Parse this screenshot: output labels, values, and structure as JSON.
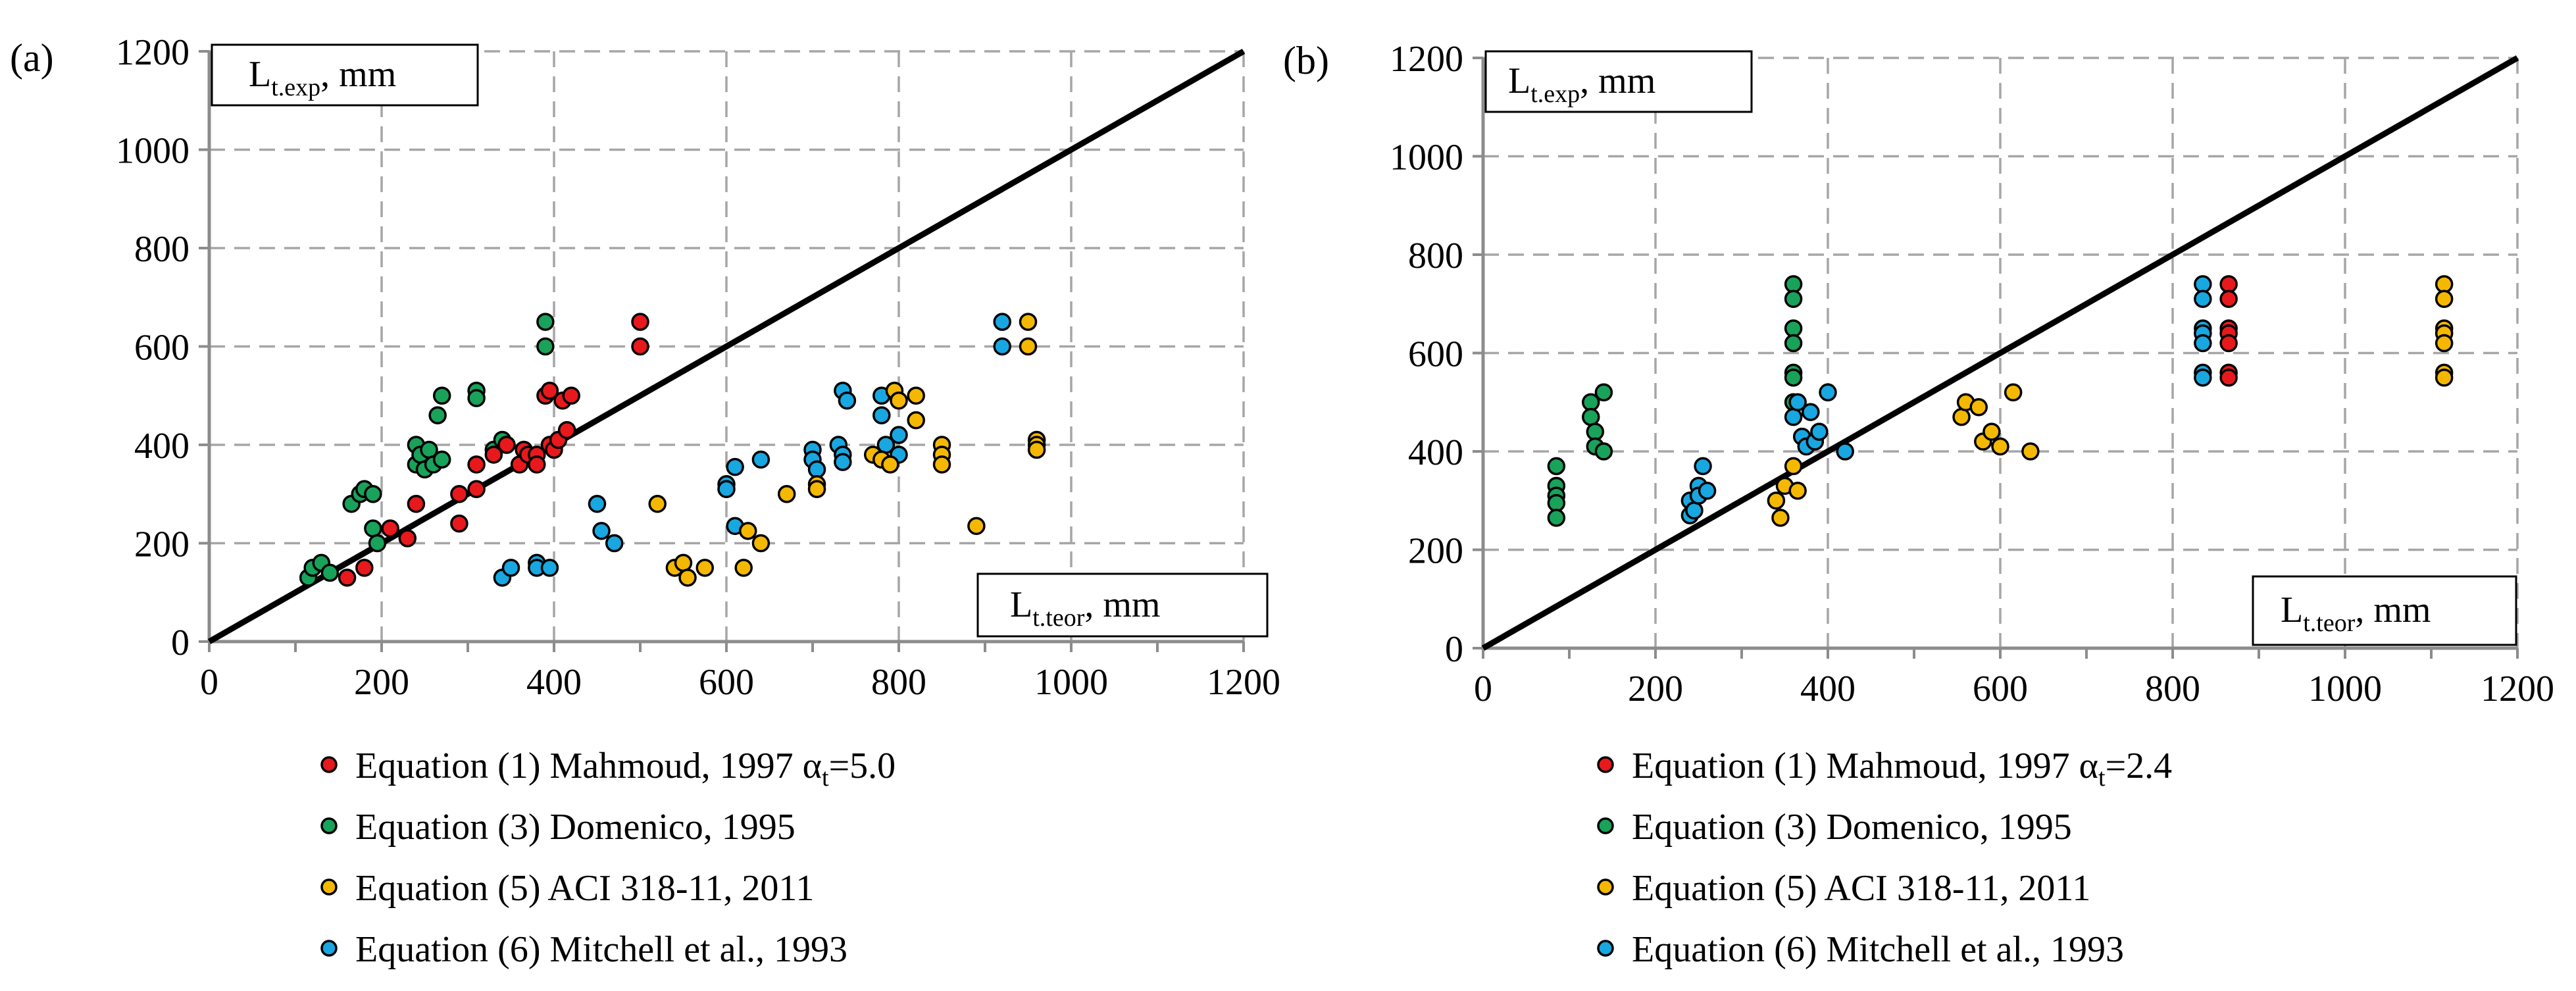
{
  "figure": {
    "colors": {
      "red": "#e8191c",
      "green": "#19a25a",
      "yellow": "#f5b800",
      "blue": "#18a7e0",
      "grid": "#a6a6a6",
      "axis": "#8c8c8c",
      "line": "#000000"
    }
  },
  "chart_data": [
    {
      "type": "scatter",
      "panel_label": "(a)",
      "xlabel_main": "L",
      "xlabel_sub": "t.teor",
      "xlabel_unit": ", mm",
      "ylabel_main": "L",
      "ylabel_sub": "t.exp",
      "ylabel_unit": ", mm",
      "xlim": [
        0,
        1200
      ],
      "ylim": [
        0,
        1200
      ],
      "xticks": [
        "0",
        "200",
        "400",
        "600",
        "800",
        "1000",
        "1200"
      ],
      "yticks": [
        "0",
        "200",
        "400",
        "600",
        "800",
        "1000",
        "1200"
      ],
      "grid": true,
      "reference_line": [
        [
          0,
          0
        ],
        [
          1200,
          1200
        ]
      ],
      "legend": [
        {
          "text": "Equation (1) Mahmoud, 1997 α",
          "sub": "t",
          "suffix": "=5.0",
          "color_key": "red"
        },
        {
          "text": "Equation (3) Domenico, 1995",
          "sub": "",
          "suffix": "",
          "color_key": "green"
        },
        {
          "text": "Equation (5) ACI 318-11, 2011",
          "sub": "",
          "suffix": "",
          "color_key": "yellow"
        },
        {
          "text": "Equation (6) Mitchell et al., 1993",
          "sub": "",
          "suffix": "",
          "color_key": "blue"
        }
      ],
      "series": [
        {
          "name": "Equation (6) Mitchell et al., 1993",
          "color_key": "blue",
          "points": [
            [
              340,
              130
            ],
            [
              350,
              150
            ],
            [
              380,
              160
            ],
            [
              380,
              150
            ],
            [
              395,
              150
            ],
            [
              450,
              280
            ],
            [
              455,
              225
            ],
            [
              470,
              200
            ],
            [
              600,
              320
            ],
            [
              600,
              310
            ],
            [
              610,
              355
            ],
            [
              610,
              235
            ],
            [
              640,
              370
            ],
            [
              700,
              390
            ],
            [
              700,
              370
            ],
            [
              705,
              350
            ],
            [
              730,
              400
            ],
            [
              735,
              380
            ],
            [
              735,
              365
            ],
            [
              735,
              510
            ],
            [
              740,
              490
            ],
            [
              780,
              500
            ],
            [
              780,
              460
            ],
            [
              785,
              400
            ],
            [
              800,
              420
            ],
            [
              800,
              380
            ],
            [
              920,
              650
            ],
            [
              920,
              600
            ]
          ]
        },
        {
          "name": "Equation (5) ACI 318-11, 2011",
          "color_key": "yellow",
          "points": [
            [
              520,
              280
            ],
            [
              540,
              150
            ],
            [
              550,
              160
            ],
            [
              555,
              130
            ],
            [
              575,
              150
            ],
            [
              620,
              150
            ],
            [
              625,
              225
            ],
            [
              640,
              200
            ],
            [
              670,
              300
            ],
            [
              705,
              320
            ],
            [
              705,
              310
            ],
            [
              770,
              380
            ],
            [
              780,
              370
            ],
            [
              790,
              360
            ],
            [
              795,
              510
            ],
            [
              800,
              490
            ],
            [
              820,
              500
            ],
            [
              820,
              450
            ],
            [
              850,
              400
            ],
            [
              850,
              380
            ],
            [
              850,
              360
            ],
            [
              890,
              235
            ],
            [
              950,
              650
            ],
            [
              950,
              600
            ],
            [
              960,
              410
            ],
            [
              960,
              400
            ],
            [
              960,
              390
            ]
          ]
        },
        {
          "name": "Equation (3) Domenico, 1995",
          "color_key": "green",
          "points": [
            [
              115,
              130
            ],
            [
              120,
              150
            ],
            [
              130,
              160
            ],
            [
              140,
              140
            ],
            [
              165,
              280
            ],
            [
              175,
              300
            ],
            [
              180,
              310
            ],
            [
              190,
              300
            ],
            [
              190,
              230
            ],
            [
              195,
              200
            ],
            [
              240,
              400
            ],
            [
              240,
              360
            ],
            [
              245,
              380
            ],
            [
              250,
              350
            ],
            [
              255,
              390
            ],
            [
              260,
              360
            ],
            [
              265,
              460
            ],
            [
              270,
              500
            ],
            [
              270,
              370
            ],
            [
              310,
              510
            ],
            [
              310,
              495
            ],
            [
              330,
              390
            ],
            [
              340,
              410
            ],
            [
              345,
              400
            ],
            [
              390,
              650
            ],
            [
              390,
              600
            ]
          ]
        },
        {
          "name": "Equation (1) Mahmoud, 1997 αt=5.0",
          "color_key": "red",
          "points": [
            [
              160,
              130
            ],
            [
              180,
              150
            ],
            [
              210,
              230
            ],
            [
              230,
              210
            ],
            [
              240,
              280
            ],
            [
              290,
              300
            ],
            [
              290,
              240
            ],
            [
              310,
              360
            ],
            [
              310,
              310
            ],
            [
              330,
              380
            ],
            [
              345,
              400
            ],
            [
              360,
              360
            ],
            [
              365,
              390
            ],
            [
              370,
              380
            ],
            [
              380,
              380
            ],
            [
              380,
              360
            ],
            [
              390,
              500
            ],
            [
              395,
              510
            ],
            [
              395,
              400
            ],
            [
              400,
              390
            ],
            [
              405,
              410
            ],
            [
              410,
              490
            ],
            [
              415,
              430
            ],
            [
              420,
              500
            ],
            [
              500,
              650
            ],
            [
              500,
              600
            ]
          ]
        }
      ]
    },
    {
      "type": "scatter",
      "panel_label": "(b)",
      "xlabel_main": "L",
      "xlabel_sub": "t.teor",
      "xlabel_unit": ", mm",
      "ylabel_main": "L",
      "ylabel_sub": "t.exp",
      "ylabel_unit": ", mm",
      "xlim": [
        0,
        1200
      ],
      "ylim": [
        0,
        1200
      ],
      "xticks": [
        "0",
        "200",
        "400",
        "600",
        "800",
        "1000",
        "1200"
      ],
      "yticks": [
        "0",
        "200",
        "400",
        "600",
        "800",
        "1000",
        "1200"
      ],
      "grid": true,
      "reference_line": [
        [
          0,
          0
        ],
        [
          1200,
          1200
        ]
      ],
      "legend": [
        {
          "text": "Equation (1) Mahmoud, 1997 α",
          "sub": "t",
          "suffix": "=2.4",
          "color_key": "red"
        },
        {
          "text": "Equation (3) Domenico, 1995",
          "sub": "",
          "suffix": "",
          "color_key": "green"
        },
        {
          "text": "Equation (5) ACI 318-11, 2011",
          "sub": "",
          "suffix": "",
          "color_key": "yellow"
        },
        {
          "text": "Equation (6) Mitchell et al., 1993",
          "sub": "",
          "suffix": "",
          "color_key": "blue"
        }
      ],
      "series": [
        {
          "name": "Equation (3) Domenico, 1995",
          "color_key": "green",
          "points": [
            [
              85,
              370
            ],
            [
              85,
              330
            ],
            [
              85,
              310
            ],
            [
              85,
              295
            ],
            [
              85,
              265
            ],
            [
              125,
              500
            ],
            [
              125,
              470
            ],
            [
              130,
              440
            ],
            [
              130,
              410
            ],
            [
              140,
              520
            ],
            [
              140,
              400
            ],
            [
              360,
              740
            ],
            [
              360,
              710
            ],
            [
              360,
              650
            ],
            [
              360,
              620
            ],
            [
              360,
              560
            ],
            [
              360,
              550
            ],
            [
              360,
              500
            ]
          ]
        },
        {
          "name": "Equation (5) ACI 318-11, 2011",
          "color_key": "yellow",
          "points": [
            [
              340,
              300
            ],
            [
              345,
              265
            ],
            [
              350,
              330
            ],
            [
              360,
              370
            ],
            [
              365,
              320
            ],
            [
              555,
              470
            ],
            [
              560,
              500
            ],
            [
              575,
              490
            ],
            [
              580,
              420
            ],
            [
              590,
              440
            ],
            [
              600,
              410
            ],
            [
              615,
              520
            ],
            [
              635,
              400
            ],
            [
              1115,
              740
            ],
            [
              1115,
              710
            ],
            [
              1115,
              650
            ],
            [
              1115,
              640
            ],
            [
              1115,
              620
            ],
            [
              1115,
              560
            ],
            [
              1115,
              550
            ]
          ]
        },
        {
          "name": "Equation (6) Mitchell et al., 1993",
          "color_key": "blue",
          "points": [
            [
              240,
              300
            ],
            [
              240,
              270
            ],
            [
              245,
              280
            ],
            [
              250,
              330
            ],
            [
              250,
              310
            ],
            [
              255,
              370
            ],
            [
              260,
              320
            ],
            [
              360,
              470
            ],
            [
              365,
              500
            ],
            [
              370,
              430
            ],
            [
              375,
              410
            ],
            [
              380,
              480
            ],
            [
              385,
              420
            ],
            [
              390,
              440
            ],
            [
              400,
              520
            ],
            [
              420,
              400
            ],
            [
              835,
              740
            ],
            [
              835,
              710
            ],
            [
              835,
              650
            ],
            [
              835,
              640
            ],
            [
              835,
              620
            ],
            [
              835,
              560
            ],
            [
              835,
              550
            ]
          ]
        },
        {
          "name": "Equation (1) Mahmoud, 1997 αt=2.4",
          "color_key": "red",
          "points": [
            [
              865,
              740
            ],
            [
              865,
              710
            ],
            [
              865,
              650
            ],
            [
              865,
              640
            ],
            [
              865,
              620
            ],
            [
              865,
              560
            ],
            [
              865,
              550
            ]
          ]
        }
      ]
    }
  ]
}
